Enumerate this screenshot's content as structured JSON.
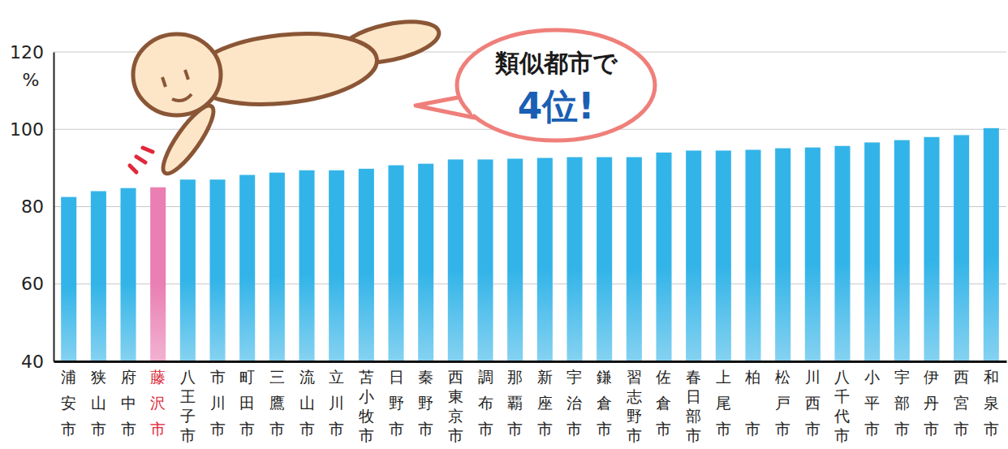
{
  "chart_data": {
    "type": "bar",
    "categories": [
      "浦安市",
      "狭山市",
      "府中市",
      "藤沢市",
      "八王子市",
      "市川市",
      "町田市",
      "三鷹市",
      "流山市",
      "立川市",
      "苫小牧市",
      "日野市",
      "秦野市",
      "西東京市",
      "調布市",
      "那覇市",
      "新座市",
      "宇治市",
      "鎌倉市",
      "習志野市",
      "佐倉市",
      "春日部市",
      "上尾市",
      "柏市",
      "松戸市",
      "川西市",
      "八千代市",
      "小平市",
      "宇部市",
      "伊丹市",
      "西宮市",
      "和泉市"
    ],
    "values": [
      82.5,
      84,
      84.8,
      85,
      87,
      87,
      88.2,
      88.8,
      89.4,
      89.4,
      89.8,
      90.7,
      91.1,
      92.2,
      92.2,
      92.4,
      92.6,
      92.8,
      92.8,
      92.8,
      94,
      94.5,
      94.5,
      94.7,
      95.1,
      95.3,
      95.7,
      96.6,
      97.2,
      98,
      98.5,
      100.3
    ],
    "colors": [
      "#33b4e8",
      "#33b4e8",
      "#33b4e8",
      "#e97fb3",
      "#33b4e8",
      "#33b4e8",
      "#33b4e8",
      "#33b4e8",
      "#33b4e8",
      "#33b4e8",
      "#33b4e8",
      "#33b4e8",
      "#33b4e8",
      "#33b4e8",
      "#33b4e8",
      "#33b4e8",
      "#33b4e8",
      "#33b4e8",
      "#33b4e8",
      "#33b4e8",
      "#33b4e8",
      "#33b4e8",
      "#33b4e8",
      "#33b4e8",
      "#33b4e8",
      "#33b4e8",
      "#33b4e8",
      "#33b4e8",
      "#33b4e8",
      "#33b4e8",
      "#33b4e8",
      "#33b4e8"
    ],
    "ylabel": "%",
    "ylim": [
      40,
      120
    ],
    "yticks": [
      40,
      60,
      80,
      100,
      120
    ],
    "grid": true,
    "annotations": [
      "類似都市で",
      "4位!"
    ]
  }
}
